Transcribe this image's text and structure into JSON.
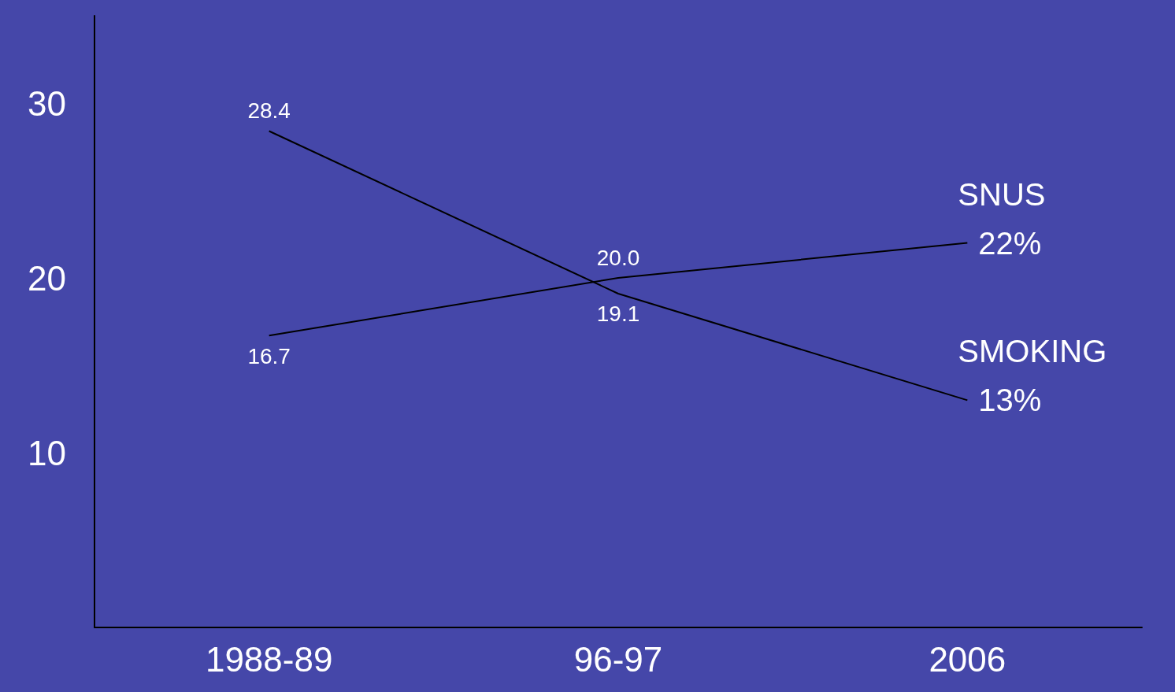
{
  "chart_data": {
    "type": "line",
    "categories": [
      "1988-89",
      "96-97",
      "2006"
    ],
    "series": [
      {
        "name": "SMOKING",
        "color": "#000000",
        "values": [
          28.4,
          19.1,
          13
        ],
        "value_labels": [
          "28.4",
          "19.1",
          "13%"
        ]
      },
      {
        "name": "SNUS",
        "color": "#000000",
        "values": [
          16.7,
          20.0,
          22
        ],
        "value_labels": [
          "16.7",
          "20.0",
          "22%"
        ]
      }
    ],
    "ylim": [
      0,
      35
    ],
    "yticks": [
      10,
      20,
      30
    ],
    "grid": false,
    "legend": false,
    "marker": "none",
    "line_style": "solid"
  }
}
